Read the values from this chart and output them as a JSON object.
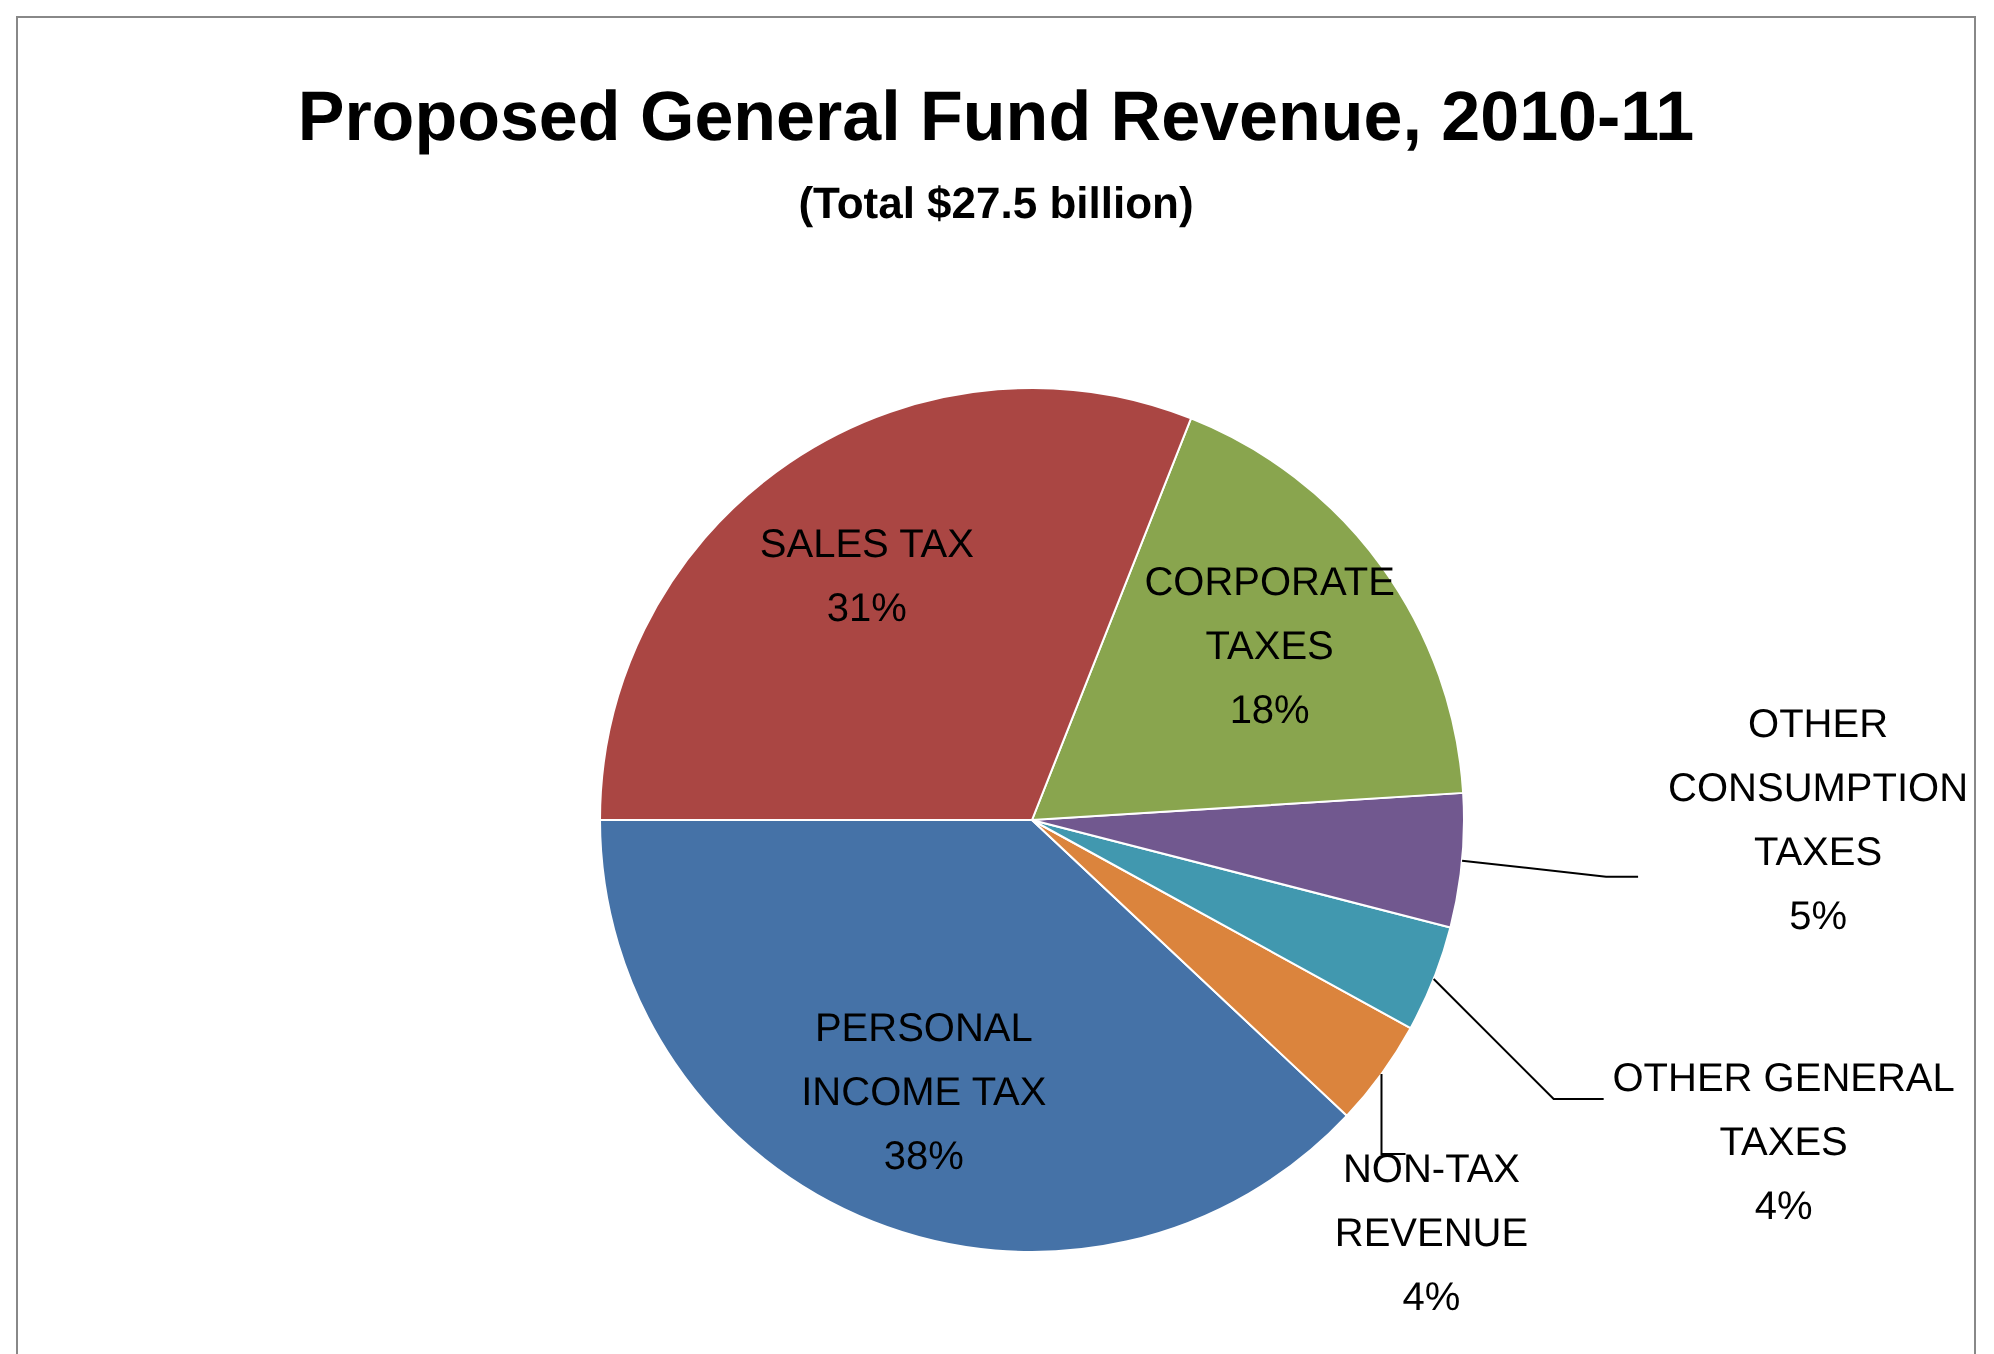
{
  "chart_data": {
    "type": "pie",
    "title": "Proposed General Fund Revenue, 2010-11",
    "subtitle": "(Total $27.5 billion)",
    "categories": [
      "PERSONAL INCOME TAX",
      "NON-TAX REVENUE",
      "OTHER GENERAL TAXES",
      "OTHER CONSUMPTION TAXES",
      "CORPORATE TAXES",
      "SALES TAX"
    ],
    "values": [
      38,
      4,
      4,
      5,
      18,
      31
    ],
    "colors": [
      "#4572a7",
      "#db843d",
      "#4198af",
      "#71588f",
      "#89a54e",
      "#aa4643"
    ],
    "value_labels": [
      "38%",
      "4%",
      "4%",
      "5%",
      "18%",
      "31%"
    ]
  }
}
